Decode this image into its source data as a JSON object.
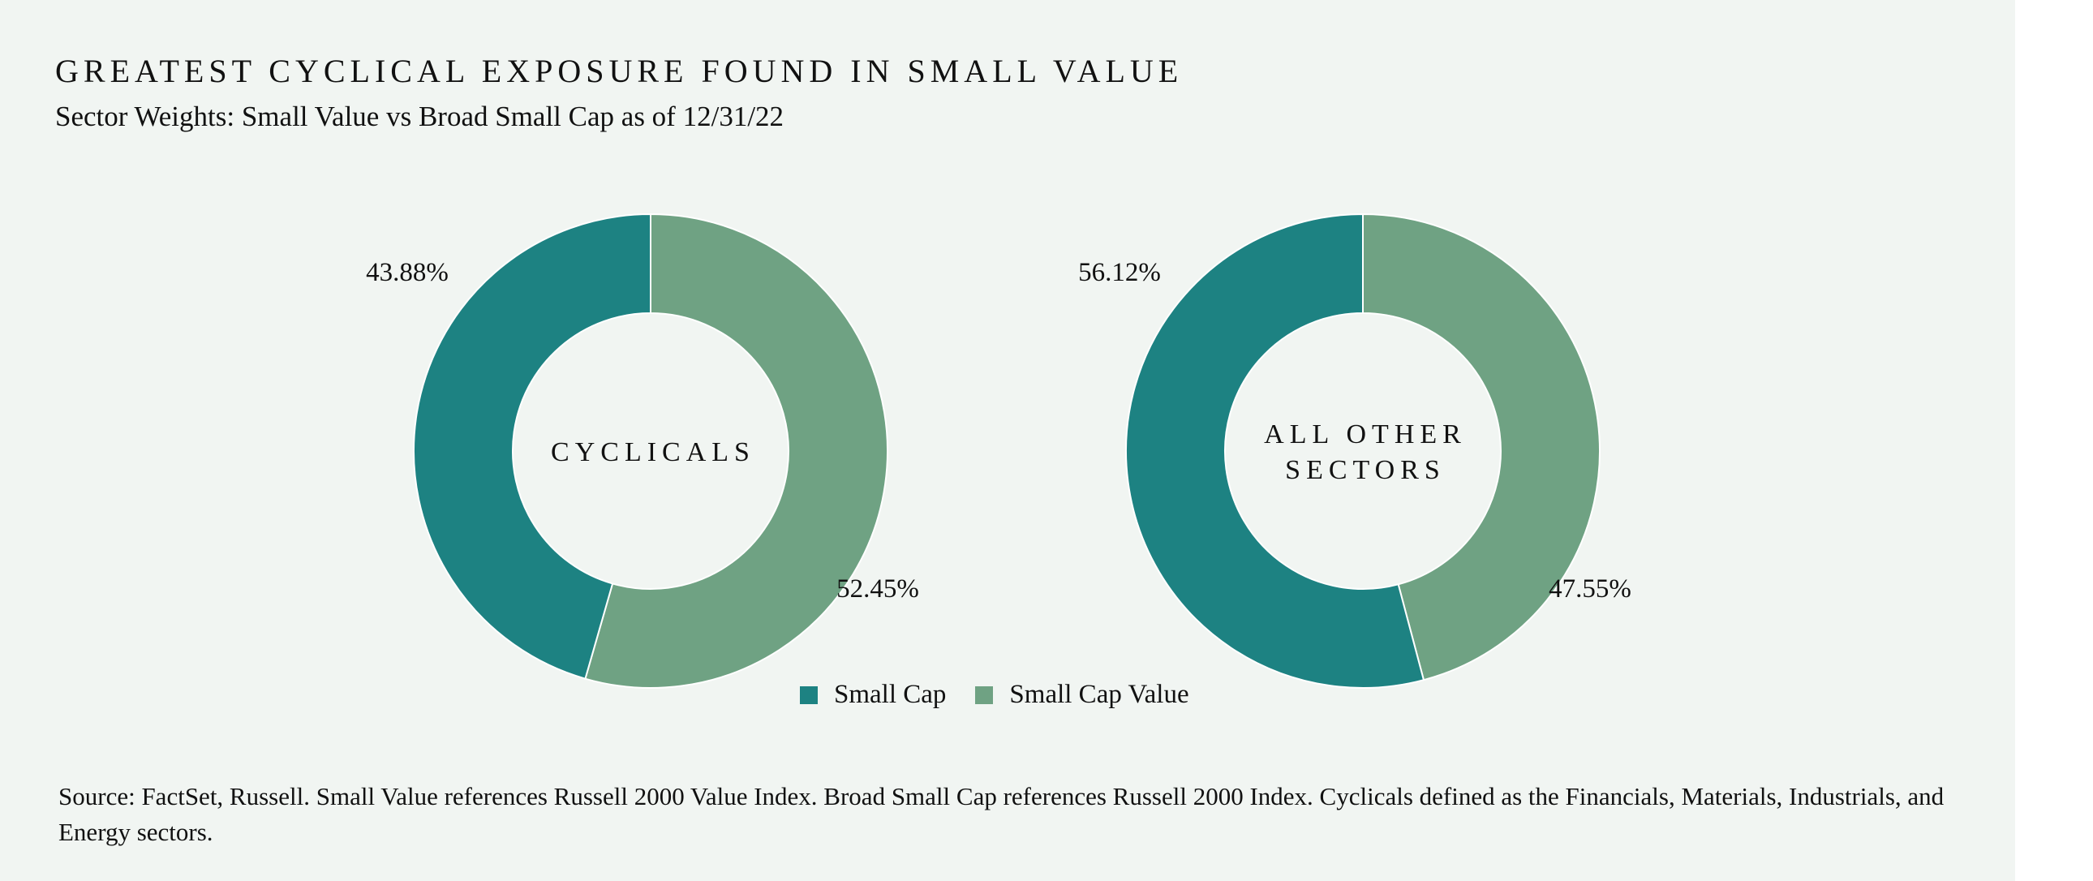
{
  "title": "GREATEST CYCLICAL EXPOSURE FOUND IN SMALL VALUE",
  "subtitle": "Sector Weights: Small Value vs Broad Small Cap as of 12/31/22",
  "colors": {
    "small_cap": "#1d8282",
    "small_cap_value": "#6fa283",
    "background": "#f1f5f2"
  },
  "legend": [
    {
      "label": "Small Cap",
      "color": "#1d8282"
    },
    {
      "label": "Small Cap Value",
      "color": "#6fa283"
    }
  ],
  "chart_data": [
    {
      "type": "pie",
      "style": "donut",
      "center_label": [
        "CYCLICALS"
      ],
      "slices": [
        {
          "series": "Small Cap",
          "value": 43.88,
          "label": "43.88%",
          "color": "#1d8282"
        },
        {
          "series": "Small Cap Value",
          "value": 52.45,
          "label": "52.45%",
          "color": "#6fa283"
        }
      ]
    },
    {
      "type": "pie",
      "style": "donut",
      "center_label": [
        "ALL OTHER",
        "SECTORS"
      ],
      "slices": [
        {
          "series": "Small Cap",
          "value": 56.12,
          "label": "56.12%",
          "color": "#1d8282"
        },
        {
          "series": "Small Cap Value",
          "value": 47.55,
          "label": "47.55%",
          "color": "#6fa283"
        }
      ]
    }
  ],
  "source": "Source: FactSet, Russell. Small Value references Russell 2000 Value Index. Broad Small Cap references Russell 2000 Index. Cyclicals defined as the Financials, Materials, Industrials, and Energy sectors."
}
